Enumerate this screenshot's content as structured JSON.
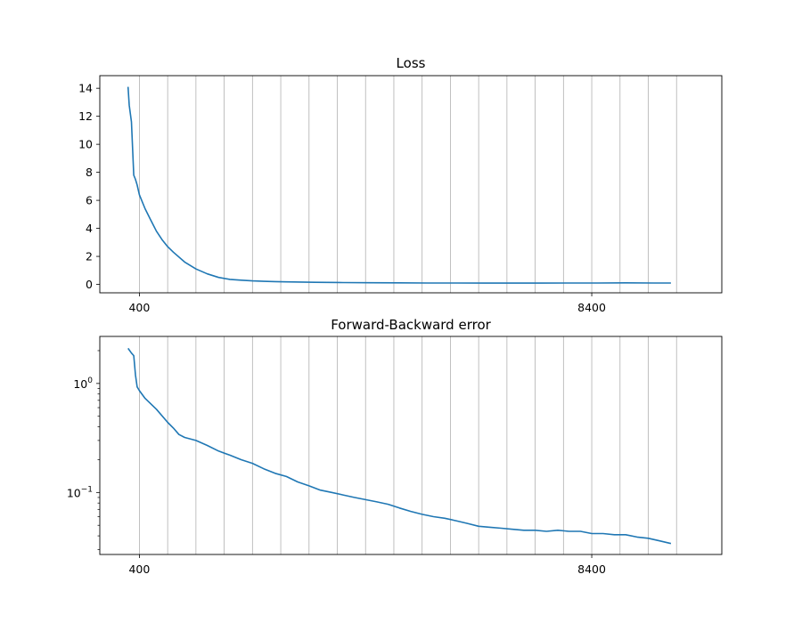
{
  "chart_data": [
    {
      "type": "line",
      "title": "Loss",
      "xlabel": "",
      "ylabel": "",
      "xlim": [
        -300,
        10700
      ],
      "ylim": [
        -0.6,
        14.9
      ],
      "yscale": "linear",
      "grid": "x-major-and-minor",
      "x_tick_labels": [
        400,
        8400
      ],
      "y_tick_labels": [
        0,
        2,
        4,
        6,
        8,
        10,
        12,
        14
      ],
      "line_color": "#1f77b4",
      "series": [
        {
          "x": [
            200,
            220,
            260,
            300,
            330,
            360,
            400,
            500,
            600,
            700,
            800,
            900,
            1000,
            1200,
            1400,
            1600,
            1800,
            2000,
            2200,
            2400,
            2600,
            2800,
            3000,
            3500,
            4000,
            4500,
            5000,
            5500,
            6000,
            6500,
            7000,
            7500,
            8000,
            8500,
            9000,
            9500,
            9800
          ],
          "y": [
            14.1,
            12.8,
            11.6,
            7.8,
            7.5,
            7.1,
            6.4,
            5.4,
            4.6,
            3.8,
            3.2,
            2.7,
            2.3,
            1.6,
            1.1,
            0.75,
            0.5,
            0.36,
            0.3,
            0.25,
            0.22,
            0.2,
            0.18,
            0.15,
            0.13,
            0.12,
            0.11,
            0.1,
            0.1,
            0.09,
            0.09,
            0.09,
            0.1,
            0.1,
            0.11,
            0.1,
            0.1
          ]
        }
      ]
    },
    {
      "type": "line",
      "title": "Forward-Backward error",
      "xlabel": "",
      "ylabel": "",
      "xlim": [
        -300,
        10700
      ],
      "ylim": [
        0.027,
        2.7
      ],
      "yscale": "log",
      "grid": "x-major-and-minor",
      "x_tick_labels": [
        400,
        8400
      ],
      "y_tick_labels": [
        "10^0",
        "10^-1"
      ],
      "line_color": "#1f77b4",
      "series": [
        {
          "x": [
            200,
            260,
            300,
            330,
            360,
            400,
            500,
            700,
            900,
            1000,
            1100,
            1200,
            1400,
            1600,
            1800,
            2000,
            2200,
            2400,
            2600,
            2800,
            3000,
            3200,
            3400,
            3600,
            3800,
            4000,
            4200,
            4400,
            4600,
            4800,
            5000,
            5200,
            5400,
            5600,
            5800,
            6000,
            6200,
            6400,
            6600,
            6800,
            7000,
            7200,
            7400,
            7600,
            7800,
            8000,
            8200,
            8400,
            8600,
            8800,
            9000,
            9200,
            9400,
            9600,
            9800
          ],
          "y": [
            2.1,
            1.9,
            1.8,
            1.2,
            0.93,
            0.86,
            0.73,
            0.58,
            0.44,
            0.39,
            0.34,
            0.32,
            0.3,
            0.27,
            0.24,
            0.22,
            0.2,
            0.185,
            0.165,
            0.15,
            0.14,
            0.125,
            0.115,
            0.105,
            0.1,
            0.095,
            0.09,
            0.086,
            0.082,
            0.078,
            0.072,
            0.067,
            0.063,
            0.06,
            0.058,
            0.055,
            0.052,
            0.049,
            0.048,
            0.047,
            0.046,
            0.045,
            0.045,
            0.044,
            0.045,
            0.044,
            0.044,
            0.042,
            0.042,
            0.041,
            0.041,
            0.039,
            0.038,
            0.036,
            0.034
          ]
        }
      ]
    }
  ]
}
